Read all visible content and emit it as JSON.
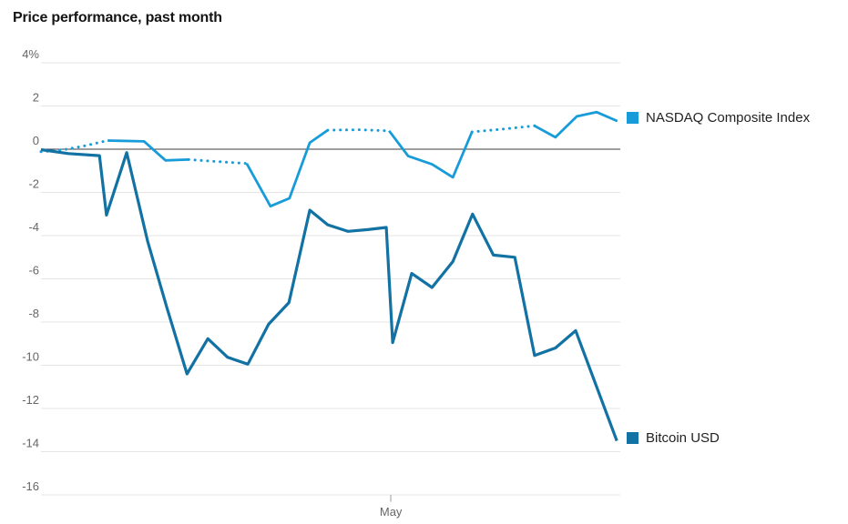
{
  "title": "Price performance, past month",
  "legend": {
    "items": [
      {
        "label": "NASDAQ Composite Index",
        "color": "#189cd9"
      },
      {
        "label": "Bitcoin USD",
        "color": "#1272a3"
      }
    ]
  },
  "chart_data": {
    "type": "line",
    "title": "Price performance, past month",
    "ylabel": "%",
    "ylim": [
      -16,
      4
    ],
    "grid": true,
    "legend_position": "right-of-line-ends",
    "grid_color": "#e4e4e4",
    "zero_line_color": "#3c3c3c",
    "axis_text_color": "#666666",
    "yticks": [
      {
        "label": "4%",
        "value": 4
      },
      {
        "label": "2",
        "value": 2
      },
      {
        "label": "0",
        "value": 0
      },
      {
        "label": "-2",
        "value": -2
      },
      {
        "label": "-4",
        "value": -4
      },
      {
        "label": "-6",
        "value": -6
      },
      {
        "label": "-8",
        "value": -8
      },
      {
        "label": "-10",
        "value": -10
      },
      {
        "label": "-12",
        "value": -12
      },
      {
        "label": "-14",
        "value": -14
      },
      {
        "label": "-16",
        "value": -16
      }
    ],
    "xticks": [
      {
        "label": "May",
        "pos": 60.4
      }
    ],
    "x_unit": "percent-of-axis (past month, daily)",
    "y_unit": "percent change",
    "series": [
      {
        "name": "NASDAQ Composite Index",
        "color": "#189cd9",
        "line_width": 2.8,
        "note": "dotted segments = non-trading days",
        "segments": [
          {
            "style": "dotted",
            "points": [
              [
                0,
                -0.12
              ],
              [
                3.8,
                -0.03
              ],
              [
                7.5,
                0.15
              ],
              [
                11.5,
                0.4
              ]
            ]
          },
          {
            "style": "solid",
            "points": [
              [
                11.5,
                0.4
              ],
              [
                17.8,
                0.36
              ],
              [
                21.5,
                -0.52
              ],
              [
                25.5,
                -0.48
              ]
            ]
          },
          {
            "style": "dotted",
            "points": [
              [
                25.5,
                -0.48
              ],
              [
                30.2,
                -0.57
              ],
              [
                35.5,
                -0.66
              ]
            ]
          },
          {
            "style": "solid",
            "points": [
              [
                35.5,
                -0.66
              ],
              [
                39.6,
                -2.64
              ],
              [
                42.9,
                -2.27
              ],
              [
                46.4,
                0.3
              ],
              [
                49.5,
                0.88
              ]
            ]
          },
          {
            "style": "dotted",
            "points": [
              [
                49.5,
                0.88
              ],
              [
                55.0,
                0.9
              ],
              [
                60.1,
                0.85
              ]
            ]
          },
          {
            "style": "solid",
            "points": [
              [
                60.1,
                0.85
              ],
              [
                63.4,
                -0.32
              ],
              [
                67.5,
                -0.7
              ],
              [
                71.1,
                -1.3
              ],
              [
                74.4,
                0.8
              ]
            ]
          },
          {
            "style": "dotted",
            "points": [
              [
                74.4,
                0.8
              ],
              [
                79.7,
                0.93
              ],
              [
                85.2,
                1.08
              ]
            ]
          },
          {
            "style": "solid",
            "points": [
              [
                85.2,
                1.08
              ],
              [
                88.8,
                0.55
              ],
              [
                92.5,
                1.52
              ],
              [
                95.9,
                1.72
              ],
              [
                99.5,
                1.3
              ]
            ]
          }
        ]
      },
      {
        "name": "Bitcoin USD",
        "color": "#1272a3",
        "line_width": 3.2,
        "segments": [
          {
            "style": "solid",
            "points": [
              [
                0,
                -0.02
              ],
              [
                4.7,
                -0.2
              ],
              [
                10.1,
                -0.3
              ],
              [
                11.3,
                -3.05
              ],
              [
                14.8,
                -0.16
              ],
              [
                18.4,
                -4.25
              ],
              [
                21.7,
                -7.3
              ],
              [
                25.2,
                -10.4
              ],
              [
                28.8,
                -8.77
              ],
              [
                32.2,
                -9.63
              ],
              [
                35.7,
                -9.95
              ],
              [
                39.3,
                -8.1
              ],
              [
                42.8,
                -7.1
              ],
              [
                46.4,
                -2.82
              ],
              [
                49.5,
                -3.5
              ],
              [
                53.0,
                -3.8
              ],
              [
                56.4,
                -3.72
              ],
              [
                59.6,
                -3.62
              ],
              [
                60.7,
                -8.95
              ],
              [
                64.0,
                -5.75
              ],
              [
                67.5,
                -6.4
              ],
              [
                71.1,
                -5.2
              ],
              [
                74.5,
                -3.0
              ],
              [
                78.1,
                -4.9
              ],
              [
                81.8,
                -5.0
              ],
              [
                85.2,
                -9.55
              ],
              [
                88.8,
                -9.2
              ],
              [
                92.3,
                -8.4
              ],
              [
                99.4,
                -13.5
              ]
            ]
          }
        ]
      }
    ]
  }
}
